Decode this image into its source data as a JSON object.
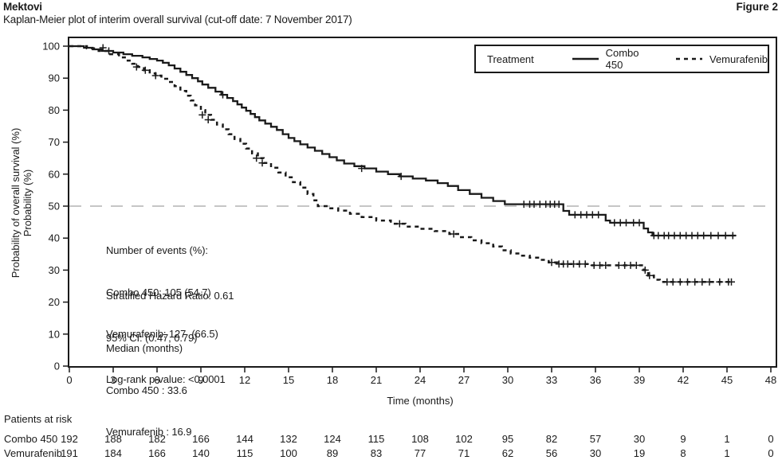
{
  "header": {
    "product": "Mektovi",
    "subtitle": "Kaplan-Meier plot of interim overall survival (cut-off date: 7 November 2017)",
    "figure_label": "Figure 2"
  },
  "legend": {
    "title": "Treatment",
    "items": [
      {
        "label": "Combo 450",
        "line_style": "solid"
      },
      {
        "label": "Vemurafenib",
        "line_style": "dashed"
      }
    ]
  },
  "annotations": {
    "events": [
      "Number of events (%):",
      "Combo 450: 105 (54.7)",
      "Vemurafenib: 127  (66.5)"
    ],
    "stats": [
      "Stratified Hazard Ratio: 0.61",
      "95% CI: (0.47, 0.79)",
      "Log-rank p-value: <0.0001"
    ],
    "medians": [
      "Median (months)",
      "Combo 450 : 33.6",
      "Vemurafenib : 16.9"
    ]
  },
  "axes": {
    "x_label": "Time (months)",
    "y_label_line1": "Probability of overall survival (%)",
    "y_label_line2": "Probability (%)",
    "x_ticks": [
      0,
      3,
      6,
      9,
      12,
      15,
      18,
      21,
      24,
      27,
      30,
      33,
      36,
      39,
      42,
      45,
      48
    ],
    "y_ticks": [
      0,
      10,
      20,
      30,
      40,
      50,
      60,
      70,
      80,
      90,
      100
    ]
  },
  "risk_table": {
    "title": "Patients at risk",
    "rows": [
      {
        "label": "Combo 450",
        "counts": [
          192,
          188,
          182,
          166,
          144,
          132,
          124,
          115,
          108,
          102,
          95,
          82,
          57,
          30,
          9,
          1,
          0
        ]
      },
      {
        "label": "Vemurafenib",
        "counts": [
          191,
          184,
          166,
          140,
          115,
          100,
          89,
          83,
          77,
          71,
          62,
          56,
          30,
          19,
          8,
          1,
          0
        ]
      }
    ]
  },
  "colors": {
    "curve": "#1a1a1a",
    "text": "#1a1a1a",
    "reference_line": "#b3b3b3",
    "background": "#ffffff"
  },
  "chart_data": {
    "type": "line",
    "subtype": "kaplan-meier-step",
    "title": "Kaplan-Meier plot of interim overall survival (cut-off date: 7 November 2017)",
    "xlabel": "Time (months)",
    "ylabel": "Probability of overall survival (%) / Probability (%)",
    "x_range": [
      0,
      48
    ],
    "y_range": [
      0,
      100
    ],
    "grid": false,
    "legend_position": "top-right-inside",
    "reference_line_y": 50,
    "series": [
      {
        "name": "Combo 450",
        "line_style": "solid",
        "median_months": 33.6,
        "events": "105 (54.7)",
        "end_month": 45.6,
        "steps": [
          [
            0,
            100
          ],
          [
            1.0,
            99.5
          ],
          [
            1.6,
            99
          ],
          [
            2.2,
            98.5
          ],
          [
            3.0,
            98
          ],
          [
            3.7,
            97.5
          ],
          [
            4.3,
            97
          ],
          [
            5.0,
            96.5
          ],
          [
            5.5,
            96
          ],
          [
            6.0,
            95.5
          ],
          [
            6.4,
            94.8
          ],
          [
            6.8,
            94
          ],
          [
            7.2,
            93
          ],
          [
            7.6,
            92
          ],
          [
            8.0,
            91
          ],
          [
            8.4,
            90
          ],
          [
            8.8,
            89
          ],
          [
            9.1,
            88
          ],
          [
            9.5,
            87
          ],
          [
            10.0,
            85.8
          ],
          [
            10.4,
            84.8
          ],
          [
            10.8,
            83.8
          ],
          [
            11.2,
            82.8
          ],
          [
            11.5,
            81.8
          ],
          [
            11.8,
            80.8
          ],
          [
            12.1,
            79.8
          ],
          [
            12.4,
            78.8
          ],
          [
            12.7,
            77.8
          ],
          [
            13.0,
            76.8
          ],
          [
            13.4,
            75.8
          ],
          [
            13.8,
            74.8
          ],
          [
            14.2,
            73.8
          ],
          [
            14.6,
            72.5
          ],
          [
            15.0,
            71.3
          ],
          [
            15.4,
            70.3
          ],
          [
            15.8,
            69.3
          ],
          [
            16.3,
            68.3
          ],
          [
            16.8,
            67.3
          ],
          [
            17.3,
            66.3
          ],
          [
            17.8,
            65.3
          ],
          [
            18.3,
            64.3
          ],
          [
            18.8,
            63.3
          ],
          [
            19.5,
            62.5
          ],
          [
            20.2,
            61.8
          ],
          [
            21.0,
            60.8
          ],
          [
            21.8,
            60
          ],
          [
            22.6,
            59.3
          ],
          [
            23.5,
            58.6
          ],
          [
            24.4,
            58
          ],
          [
            25.2,
            57.2
          ],
          [
            25.9,
            56.3
          ],
          [
            26.6,
            55
          ],
          [
            27.4,
            53.8
          ],
          [
            28.2,
            52.6
          ],
          [
            29.0,
            51.6
          ],
          [
            29.8,
            50.6
          ],
          [
            33.8,
            48.5
          ],
          [
            34.2,
            47.3
          ],
          [
            36.7,
            45.5
          ],
          [
            37.0,
            44.8
          ],
          [
            39.3,
            43
          ],
          [
            39.6,
            41.8
          ],
          [
            39.9,
            40.8
          ]
        ],
        "censor_marks": [
          [
            2.3,
            99.5
          ],
          [
            2.7,
            98.5
          ],
          [
            10.5,
            84.8
          ],
          [
            20.0,
            61.8
          ],
          [
            22.7,
            59.3
          ],
          [
            31.1,
            50.6
          ],
          [
            31.5,
            50.6
          ],
          [
            31.8,
            50.6
          ],
          [
            32.2,
            50.6
          ],
          [
            32.6,
            50.6
          ],
          [
            32.9,
            50.6
          ],
          [
            33.2,
            50.6
          ],
          [
            33.5,
            50.6
          ],
          [
            34.6,
            47.3
          ],
          [
            35.0,
            47.3
          ],
          [
            35.4,
            47.3
          ],
          [
            35.8,
            47.3
          ],
          [
            36.2,
            47.3
          ],
          [
            37.3,
            44.8
          ],
          [
            37.7,
            44.8
          ],
          [
            38.1,
            44.8
          ],
          [
            38.6,
            44.8
          ],
          [
            39.0,
            44.8
          ],
          [
            40.0,
            40.8
          ],
          [
            40.3,
            40.8
          ],
          [
            40.7,
            40.8
          ],
          [
            41.0,
            40.8
          ],
          [
            41.4,
            40.8
          ],
          [
            41.8,
            40.8
          ],
          [
            42.2,
            40.8
          ],
          [
            42.6,
            40.8
          ],
          [
            43.0,
            40.8
          ],
          [
            43.4,
            40.8
          ],
          [
            43.9,
            40.8
          ],
          [
            44.4,
            40.8
          ],
          [
            44.9,
            40.8
          ],
          [
            45.4,
            40.8
          ]
        ]
      },
      {
        "name": "Vemurafenib",
        "line_style": "dashed",
        "median_months": 16.9,
        "events": "127 (66.5)",
        "end_month": 45.4,
        "steps": [
          [
            0,
            100
          ],
          [
            1.2,
            99.3
          ],
          [
            2.0,
            98.5
          ],
          [
            2.8,
            97.5
          ],
          [
            3.4,
            96.5
          ],
          [
            3.9,
            95.5
          ],
          [
            4.3,
            94.5
          ],
          [
            4.7,
            93.5
          ],
          [
            5.1,
            92.5
          ],
          [
            5.5,
            91.5
          ],
          [
            5.9,
            90.8
          ],
          [
            6.3,
            89.8
          ],
          [
            6.8,
            88.8
          ],
          [
            7.2,
            87.5
          ],
          [
            7.6,
            86
          ],
          [
            8.0,
            84.5
          ],
          [
            8.3,
            83
          ],
          [
            8.6,
            81.5
          ],
          [
            9.0,
            80
          ],
          [
            9.3,
            78.5
          ],
          [
            9.7,
            77
          ],
          [
            10.1,
            75.5
          ],
          [
            10.5,
            74
          ],
          [
            10.9,
            72.5
          ],
          [
            11.3,
            71
          ],
          [
            11.7,
            69.5
          ],
          [
            12.1,
            68
          ],
          [
            12.5,
            66.5
          ],
          [
            12.9,
            65
          ],
          [
            13.3,
            63.5
          ],
          [
            13.8,
            62
          ],
          [
            14.3,
            60.5
          ],
          [
            14.8,
            59
          ],
          [
            15.3,
            57.5
          ],
          [
            15.8,
            55.8
          ],
          [
            16.3,
            53.8
          ],
          [
            16.7,
            51.8
          ],
          [
            17.0,
            50
          ],
          [
            17.6,
            49.3
          ],
          [
            18.4,
            48.6
          ],
          [
            19.2,
            47.6
          ],
          [
            20.0,
            46.6
          ],
          [
            21.0,
            45.5
          ],
          [
            22.0,
            44.5
          ],
          [
            23.0,
            43.6
          ],
          [
            24.0,
            42.9
          ],
          [
            25.0,
            42.2
          ],
          [
            26.0,
            41.3
          ],
          [
            26.8,
            40.3
          ],
          [
            27.5,
            39.3
          ],
          [
            28.2,
            38.4
          ],
          [
            29.0,
            37.4
          ],
          [
            29.6,
            36.2
          ],
          [
            30.2,
            35.2
          ],
          [
            30.8,
            34.5
          ],
          [
            31.5,
            33.9
          ],
          [
            32.2,
            33.2
          ],
          [
            32.8,
            32.4
          ],
          [
            33.4,
            31.9
          ],
          [
            35.6,
            31.5
          ],
          [
            39.3,
            30
          ],
          [
            39.6,
            28.3
          ],
          [
            40.0,
            27
          ],
          [
            40.4,
            26.3
          ]
        ],
        "censor_marks": [
          [
            4.6,
            93.5
          ],
          [
            5.2,
            92.5
          ],
          [
            5.9,
            90.8
          ],
          [
            9.1,
            78.5
          ],
          [
            9.5,
            77
          ],
          [
            12.8,
            65
          ],
          [
            13.2,
            63.5
          ],
          [
            22.6,
            44.5
          ],
          [
            26.3,
            41.3
          ],
          [
            33.0,
            32.4
          ],
          [
            33.5,
            31.9
          ],
          [
            33.8,
            31.9
          ],
          [
            34.1,
            31.9
          ],
          [
            34.5,
            31.9
          ],
          [
            34.9,
            31.9
          ],
          [
            35.3,
            31.9
          ],
          [
            35.9,
            31.5
          ],
          [
            36.3,
            31.5
          ],
          [
            36.7,
            31.5
          ],
          [
            37.6,
            31.5
          ],
          [
            38.0,
            31.5
          ],
          [
            38.4,
            31.5
          ],
          [
            38.8,
            31.5
          ],
          [
            39.4,
            30
          ],
          [
            39.7,
            28.3
          ],
          [
            40.9,
            26.3
          ],
          [
            41.3,
            26.3
          ],
          [
            41.8,
            26.3
          ],
          [
            42.3,
            26.3
          ],
          [
            42.8,
            26.3
          ],
          [
            43.3,
            26.3
          ],
          [
            43.8,
            26.3
          ],
          [
            44.5,
            26.3
          ],
          [
            45.1,
            26.3
          ],
          [
            45.3,
            26.3
          ]
        ]
      }
    ]
  }
}
